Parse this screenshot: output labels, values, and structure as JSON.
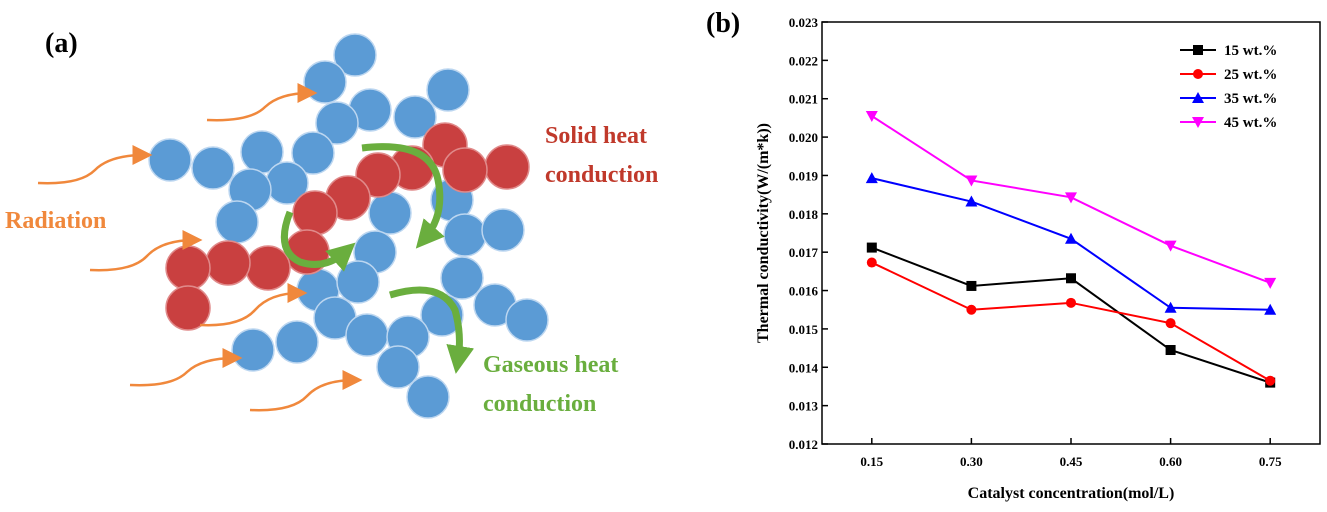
{
  "diagram": {
    "panel_label": "(a)",
    "radiation": "Radiation",
    "solid": [
      "Solid heat",
      "conduction"
    ],
    "gaseous": [
      "Gaseous heat",
      "conduction"
    ]
  },
  "chart_data": {
    "type": "line",
    "panel_label": "(b)",
    "x_label": "Catalyst concentration(mol/L)",
    "y_label": "Thermal conductivity(W/(m*k))",
    "categories": [
      "0.15",
      "0.30",
      "0.45",
      "0.60",
      "0.75"
    ],
    "ylim": [
      0.012,
      0.023
    ],
    "yticks": [
      0.012,
      0.013,
      0.014,
      0.015,
      0.016,
      0.017,
      0.018,
      0.019,
      {
        "value": 0.02,
        "label": "0.020"
      },
      0.021,
      0.022,
      0.023
    ],
    "legend": "top-right",
    "series": [
      {
        "name": "15 wt.%",
        "color": "#000000",
        "marker": "square",
        "values": [
          0.01712,
          0.01612,
          0.01632,
          0.01445,
          0.0136
        ]
      },
      {
        "name": "25 wt.%",
        "color": "#ff0000",
        "marker": "circle",
        "values": [
          0.01673,
          0.0155,
          0.01568,
          0.01515,
          0.01365
        ]
      },
      {
        "name": "35 wt.%",
        "color": "#0000ff",
        "marker": "triangle-up",
        "values": [
          0.01893,
          0.01832,
          0.01735,
          0.01555,
          0.0155
        ]
      },
      {
        "name": "45 wt.%",
        "color": "#ff00ff",
        "marker": "triangle-down",
        "values": [
          0.02055,
          0.01887,
          0.01843,
          0.01717,
          0.0162
        ]
      }
    ]
  }
}
